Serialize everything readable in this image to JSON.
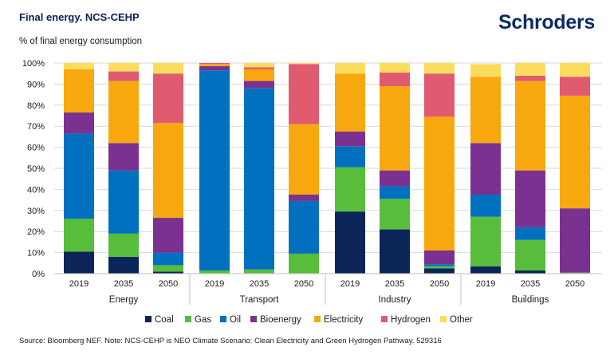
{
  "header": {
    "title": "Final energy. NCS-CEHP",
    "subtitle": "% of final energy consumption",
    "logo": "Schroders"
  },
  "footer": {
    "source": "Source: Bloomberg NEF. Note: NCS-CEHP is NEO Climate Scenario: Clean Electricity and Green Hydrogen Pathway. 529316"
  },
  "chart_data": {
    "type": "bar",
    "stacked": true,
    "title": "Final energy. NCS-CEHP",
    "ylabel": "% of final energy consumption",
    "ylim": [
      0,
      100
    ],
    "yticks": [
      0,
      10,
      20,
      30,
      40,
      50,
      60,
      70,
      80,
      90,
      100
    ],
    "ytick_labels": [
      "0%",
      "10%",
      "20%",
      "30%",
      "40%",
      "50%",
      "60%",
      "70%",
      "80%",
      "90%",
      "100%"
    ],
    "groups": [
      "Energy",
      "Transport",
      "Industry",
      "Buildings"
    ],
    "categories": [
      "2019",
      "2035",
      "2050",
      "2019",
      "2035",
      "2050",
      "2019",
      "2035",
      "2050",
      "2019",
      "2035",
      "2050"
    ],
    "legend_position": "bottom",
    "series": [
      {
        "name": "Coal",
        "color": "#0b2559",
        "values": [
          10.5,
          8,
          1,
          0,
          0,
          0,
          29.5,
          21,
          2.5,
          3.5,
          1.5,
          0
        ]
      },
      {
        "name": "Gas",
        "color": "#58bd3a",
        "values": [
          15.5,
          11,
          3,
          1.5,
          2,
          9.5,
          21,
          14.5,
          1,
          23.5,
          14.5,
          0.5
        ]
      },
      {
        "name": "Oil",
        "color": "#0070bf",
        "values": [
          40.5,
          30,
          6,
          95,
          86,
          25,
          10,
          6,
          1,
          10.5,
          6,
          0
        ]
      },
      {
        "name": "Bioenergy",
        "color": "#7b318f",
        "values": [
          10,
          13,
          16.5,
          2,
          3.5,
          3,
          7,
          7.5,
          6.5,
          24.5,
          27,
          30.5
        ]
      },
      {
        "name": "Electricity",
        "color": "#f8a80f",
        "values": [
          20.5,
          29.5,
          45,
          1,
          5.5,
          33.5,
          27.5,
          40,
          63.5,
          31.5,
          42.5,
          53.5
        ]
      },
      {
        "name": "Hydrogen",
        "color": "#e05a70",
        "values": [
          0,
          4.5,
          23.5,
          0.5,
          1,
          28.5,
          0,
          6.5,
          20.5,
          0,
          2.5,
          9
        ]
      },
      {
        "name": "Other",
        "color": "#fcdc5c",
        "values": [
          3,
          4,
          5,
          0,
          2,
          0.5,
          5,
          4.5,
          5,
          6,
          6,
          6.5
        ]
      }
    ]
  }
}
